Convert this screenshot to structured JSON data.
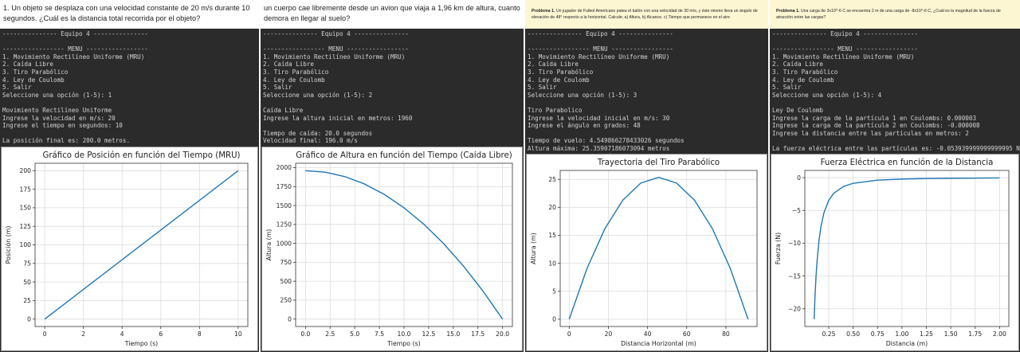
{
  "panels": [
    {
      "id": "p1",
      "problem": "1. Un objeto se desplaza con una velocidad constante de 20 m/s durante 10 segundos. ¿Cuál es la distancia total recorrida por el objeto?",
      "problem_style": "plain",
      "terminal": [
        "--------------- Equipo 4 ---------------",
        "",
        "----------------- MENU -----------------",
        "1. Movimiento Rectilíneo Uniforme (MRU)",
        "2. Caída Libre",
        "3. Tiro Parabólico",
        "4. Ley de Coulomb",
        "5. Salir",
        "Seleccione una opción (1-5): 1",
        "",
        "Movimiento Rectilíneo Uniforme",
        "Ingrese la velocidad en m/s: 20",
        "Ingrese el tiempo en segundos: 10",
        "",
        "La posición final es: 200.0 metros."
      ]
    },
    {
      "id": "p2",
      "problem": "un cuerpo cae libremente desde un avion que viaja a 1,96 km de altura, cuanto demora en llegar al suelo?",
      "problem_style": "plain",
      "terminal": [
        "--------------- Equipo 4 ---------------",
        "",
        "----------------- MENU -----------------",
        "1. Movimiento Rectilíneo Uniforme (MRU)",
        "2. Caída Libre",
        "3. Tiro Parabólico",
        "4. Ley de Coulomb",
        "5. Salir",
        "Seleccione una opción (1-5): 2",
        "",
        "Caída Libre",
        "Ingrese la altura inicial en metros: 1960",
        "",
        "Tiempo de caída: 20.0 segundos",
        "Velocidad final: 196.0 m/s"
      ]
    },
    {
      "id": "p3",
      "problem_label": "Problema 1.",
      "problem": "Un jugador de Futbol Americano patea el balón con una velocidad de 30 m/s, y éste mismo lleva un ángulo de elevación de 48° respecto a la horizontal. Calcule; a) Altura, b) Alcance, c) Tiempo que permanece en el aire",
      "problem_style": "yellow",
      "terminal": [
        "--------------- Equipo 4 ---------------",
        "",
        "----------------- MENU -----------------",
        "1. Movimiento Rectilíneo Uniforme (MRU)",
        "2. Caída Libre",
        "3. Tiro Parabólico",
        "4. Ley de Coulomb",
        "5. Salir",
        "Seleccione una opción (1-5): 3",
        "",
        "Tiro Parabolico",
        "Ingrese la velocidad inicial en m/s: 30",
        "Ingrese el ángulo en grados: 48",
        "",
        "Tiempo de vuelo: 4.549866278433026 segundos",
        "Altura máxima: 25.35907186073094 metros",
        "Distancia horizontal máxima: 91.33368345218835 metros"
      ]
    },
    {
      "id": "p4",
      "problem_label": "Problema 1.",
      "problem": "Una carga de 3x10^-6 C se encuentra 2 m de una carga de -8x10^-6 C, ¿Cuál es la magnitud de la fuerza de atracción entre las cargas?",
      "problem_style": "yellow",
      "terminal": [
        "--------------- Equipo 4 ---------------",
        "",
        "----------------- MENU -----------------",
        "1. Movimiento Rectilíneo Uniforme (MRU)",
        "2. Caída Libre",
        "3. Tiro Parabólico",
        "4. Ley de Coulomb",
        "5. Salir",
        "Seleccione una opción (1-5): 4",
        "",
        "Ley De Coulomb",
        "Ingrese la carga de la partícula 1 en Coulombs: 0.000003",
        "Ingrese la carga de la partícula 2 en Coulombs: -0.000008",
        "Ingrese la distancia entre las partículas en metros: 2",
        "",
        "La fuerza eléctrica entre las partículas es: -0.053939999999999995 Newtons."
      ]
    }
  ],
  "chart_data": [
    {
      "type": "line",
      "title": "Gráfico de Posición en función del Tiempo (MRU)",
      "xlabel": "Tiempo (s)",
      "ylabel": "Posición (m)",
      "xlim": [
        -0.5,
        10.5
      ],
      "ylim": [
        -10,
        210
      ],
      "xticks": [
        0,
        2,
        4,
        6,
        8,
        10
      ],
      "yticks": [
        0,
        25,
        50,
        75,
        100,
        125,
        150,
        175,
        200
      ],
      "xtick_labels": [
        "0",
        "2",
        "4",
        "6",
        "8",
        "10"
      ],
      "ytick_labels": [
        "0",
        "25",
        "50",
        "75",
        "100",
        "125",
        "150",
        "175",
        "200"
      ],
      "grid": true,
      "color": "#1f77b4",
      "series": [
        {
          "x": [
            0,
            10
          ],
          "y": [
            0,
            200
          ]
        }
      ]
    },
    {
      "type": "line",
      "title": "Gráfico de Altura en función del Tiempo (Caída Libre)",
      "xlabel": "Tiempo (s)",
      "ylabel": "Altura (m)",
      "xlim": [
        -1,
        21
      ],
      "ylim": [
        -98,
        2058
      ],
      "xticks": [
        0,
        2.5,
        5,
        7.5,
        10,
        12.5,
        15,
        17.5,
        20
      ],
      "yticks": [
        0,
        250,
        500,
        750,
        1000,
        1250,
        1500,
        1750,
        2000
      ],
      "xtick_labels": [
        "0.0",
        "2.5",
        "5.0",
        "7.5",
        "10.0",
        "12.5",
        "15.0",
        "17.5",
        "20.0"
      ],
      "ytick_labels": [
        "0",
        "250",
        "500",
        "750",
        "1000",
        "1250",
        "1500",
        "1750",
        "2000"
      ],
      "grid": true,
      "color": "#1f77b4",
      "series": [
        {
          "x": [
            0,
            2,
            4,
            6,
            8,
            10,
            12,
            14,
            16,
            18,
            20
          ],
          "y": [
            1960,
            1940.4,
            1881.6,
            1783.6,
            1646.4,
            1470,
            1254.4,
            999.6,
            705.6,
            372.4,
            0
          ]
        }
      ]
    },
    {
      "type": "line",
      "title": "Trayectoria del Tiro Parabólico",
      "xlabel": "Distancia Horizontal (m)",
      "ylabel": "Altura (m)",
      "xlim": [
        -4.6,
        95.9
      ],
      "ylim": [
        -1.3,
        26.6
      ],
      "xticks": [
        0,
        20,
        40,
        60,
        80
      ],
      "yticks": [
        0,
        5,
        10,
        15,
        20,
        25
      ],
      "xtick_labels": [
        "0",
        "20",
        "40",
        "60",
        "80"
      ],
      "ytick_labels": [
        "0",
        "5",
        "10",
        "15",
        "20",
        "25"
      ],
      "grid": true,
      "color": "#1f77b4",
      "series": [
        {
          "x": [
            0,
            9.13,
            18.27,
            27.4,
            36.53,
            45.67,
            54.8,
            63.93,
            73.07,
            82.2,
            91.33
          ],
          "y": [
            0,
            9.13,
            16.23,
            21.3,
            24.34,
            25.36,
            24.34,
            21.3,
            16.23,
            9.13,
            0
          ]
        }
      ]
    },
    {
      "type": "line",
      "title": "Fuerza Eléctrica en función de la Distancia",
      "xlabel": "Distancia (m)",
      "ylabel": "Fuerza (N)",
      "xlim": [
        0.005,
        2.095
      ],
      "ylim": [
        -22.7,
        1.1
      ],
      "xticks": [
        0.25,
        0.5,
        0.75,
        1.0,
        1.25,
        1.5,
        1.75,
        2.0
      ],
      "yticks": [
        0,
        -5,
        -10,
        -15,
        -20
      ],
      "xtick_labels": [
        "0.25",
        "0.50",
        "0.75",
        "1.00",
        "1.25",
        "1.50",
        "1.75",
        "2.00"
      ],
      "ytick_labels": [
        "0",
        "−5",
        "−10",
        "−15",
        "−20"
      ],
      "grid": true,
      "color": "#1f77b4",
      "series": [
        {
          "x": [
            0.1,
            0.11,
            0.12,
            0.13,
            0.15,
            0.17,
            0.2,
            0.25,
            0.3,
            0.4,
            0.5,
            0.75,
            1.0,
            1.25,
            1.5,
            1.75,
            2.0
          ],
          "y": [
            -21.58,
            -17.83,
            -14.98,
            -12.77,
            -9.59,
            -7.47,
            -5.39,
            -3.45,
            -2.4,
            -1.35,
            -0.86,
            -0.38,
            -0.22,
            -0.14,
            -0.1,
            -0.07,
            -0.05
          ]
        }
      ]
    }
  ]
}
